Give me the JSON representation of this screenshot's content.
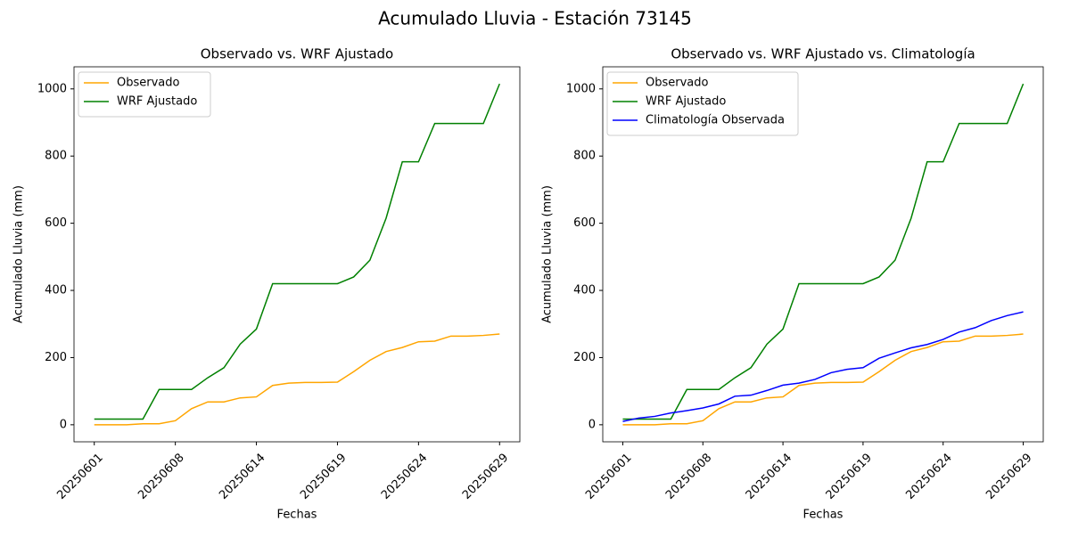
{
  "title": "Acumulado Lluvia - Estación 73145",
  "chart_data": [
    {
      "type": "line",
      "title": "Observado vs. WRF Ajustado",
      "x_label": "Fechas",
      "y_label": "Acumulado Lluvia (mm)",
      "categories": [
        "20250601",
        null,
        null,
        null,
        null,
        "20250608",
        null,
        null,
        null,
        null,
        "20250614",
        null,
        null,
        null,
        null,
        "20250619",
        null,
        null,
        null,
        null,
        "20250624",
        null,
        null,
        null,
        null,
        "20250629"
      ],
      "series": [
        {
          "name": "Observado",
          "color": "orange",
          "values": [
            0,
            0,
            0,
            3,
            3,
            12,
            48,
            68,
            68,
            80,
            83,
            117,
            124,
            126,
            126,
            127,
            158,
            192,
            218,
            230,
            247,
            249,
            264,
            264,
            266,
            270
          ]
        },
        {
          "name": "WRF Ajustado",
          "color": "green",
          "values": [
            17,
            17,
            17,
            17,
            105,
            105,
            105,
            140,
            170,
            240,
            285,
            420,
            420,
            420,
            420,
            420,
            440,
            490,
            615,
            783,
            783,
            897,
            897,
            897,
            897,
            1015
          ]
        }
      ],
      "ylim": [
        -50.75,
        1065.75
      ],
      "yticks": [
        0,
        200,
        400,
        600,
        800,
        1000
      ],
      "legend": "upper left"
    },
    {
      "type": "line",
      "title": "Observado vs. WRF Ajustado vs. Climatología",
      "x_label": "Fechas",
      "y_label": "Acumulado Lluvia (mm)",
      "categories": [
        "20250601",
        null,
        null,
        null,
        null,
        "20250608",
        null,
        null,
        null,
        null,
        "20250614",
        null,
        null,
        null,
        null,
        "20250619",
        null,
        null,
        null,
        null,
        "20250624",
        null,
        null,
        null,
        null,
        "20250629"
      ],
      "series": [
        {
          "name": "Observado",
          "color": "orange",
          "values": [
            0,
            0,
            0,
            3,
            3,
            12,
            48,
            68,
            68,
            80,
            83,
            117,
            124,
            126,
            126,
            127,
            158,
            192,
            218,
            230,
            247,
            249,
            264,
            264,
            266,
            270
          ]
        },
        {
          "name": "WRF Ajustado",
          "color": "green",
          "values": [
            17,
            17,
            17,
            17,
            105,
            105,
            105,
            140,
            170,
            240,
            285,
            420,
            420,
            420,
            420,
            420,
            440,
            490,
            615,
            783,
            783,
            897,
            897,
            897,
            897,
            1015
          ]
        },
        {
          "name": "Climatología Observada",
          "color": "blue",
          "values": [
            10,
            20,
            25,
            35,
            42,
            50,
            62,
            85,
            88,
            102,
            118,
            124,
            135,
            155,
            165,
            170,
            198,
            214,
            229,
            239,
            254,
            276,
            289,
            310,
            325,
            336
          ]
        }
      ],
      "ylim": [
        -50.75,
        1065.75
      ],
      "yticks": [
        0,
        200,
        400,
        600,
        800,
        1000
      ],
      "legend": "upper left"
    }
  ]
}
